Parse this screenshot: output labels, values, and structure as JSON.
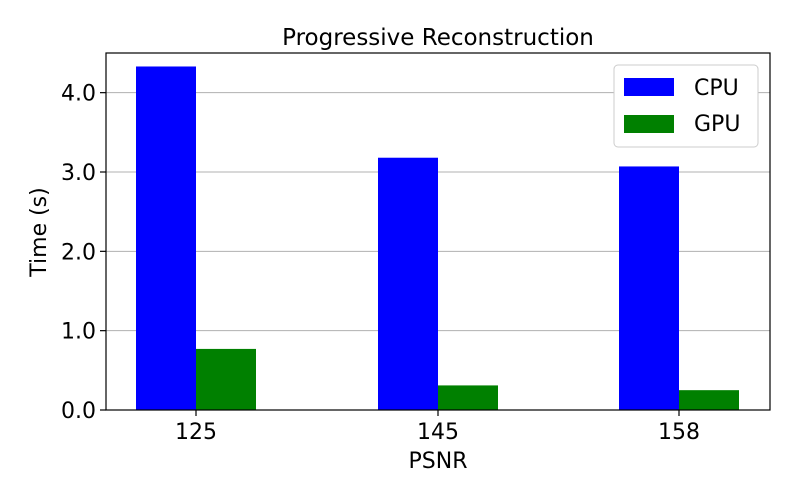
{
  "chart_data": {
    "type": "bar",
    "title": "Progressive Reconstruction",
    "xlabel": "PSNR",
    "ylabel": "Time (s)",
    "categories": [
      "125",
      "145",
      "158"
    ],
    "series": [
      {
        "name": "CPU",
        "color": "#0000ff",
        "values": [
          4.33,
          3.18,
          3.07
        ]
      },
      {
        "name": "GPU",
        "color": "#008000",
        "values": [
          0.77,
          0.31,
          0.25
        ]
      }
    ],
    "ylim": [
      0,
      4.5
    ],
    "yticks": [
      0.0,
      1.0,
      2.0,
      3.0,
      4.0
    ],
    "ytick_labels": [
      "0.0",
      "1.0",
      "2.0",
      "3.0",
      "4.0"
    ],
    "grid": "horizontal",
    "legend_position": "top-right"
  }
}
